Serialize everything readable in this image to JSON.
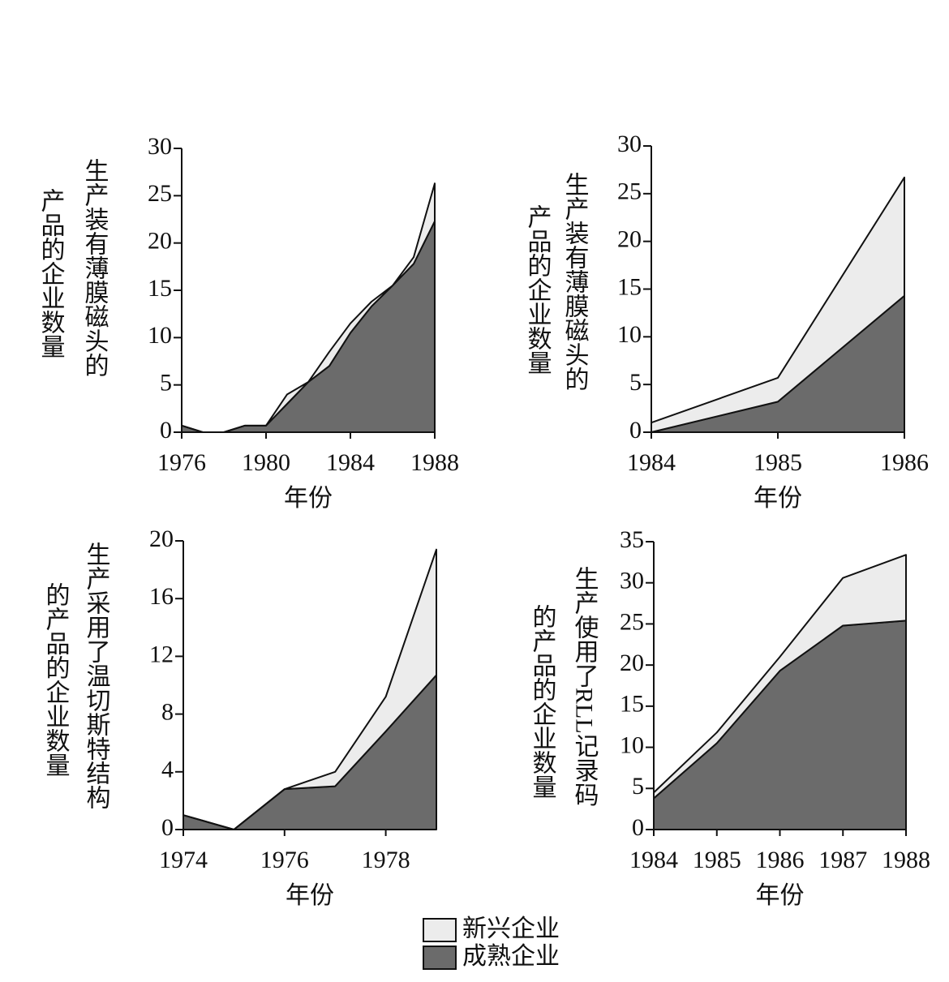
{
  "chart_data": [
    {
      "type": "stacked_area",
      "xlabel": "年份",
      "ylabel": [
        "生产装有薄膜磁头的",
        "产品的企业数量"
      ],
      "x": [
        1976,
        1977,
        1978,
        1979,
        1980,
        1981,
        1982,
        1983,
        1984,
        1985,
        1986,
        1987,
        1988
      ],
      "xlim": [
        1976,
        1988
      ],
      "xticks": [
        1976,
        1980,
        1984,
        1988
      ],
      "ylim": [
        0,
        30
      ],
      "yticks": [
        0,
        5,
        10,
        15,
        20,
        25,
        30
      ],
      "series": [
        {
          "name": "成熟企业",
          "color": "#6b6b6b",
          "values": [
            0.7,
            0,
            0,
            0.7,
            0.7,
            3,
            5.3,
            7,
            10.5,
            13.3,
            15.5,
            17.8,
            22.3
          ]
        },
        {
          "name": "新兴企业",
          "color": "#ececec",
          "values": [
            0,
            0,
            0,
            0,
            0,
            1,
            0,
            1.5,
            1,
            0.5,
            0,
            0.7,
            4
          ]
        }
      ]
    },
    {
      "type": "stacked_area",
      "xlabel": "年份",
      "ylabel": [
        "生产装有薄膜磁头的",
        "产品的企业数量"
      ],
      "x": [
        1984,
        1985,
        1986
      ],
      "xlim": [
        1984,
        1986
      ],
      "xticks": [
        1984,
        1985,
        1986
      ],
      "ylim": [
        0,
        30
      ],
      "yticks": [
        0,
        5,
        10,
        15,
        20,
        25,
        30
      ],
      "series": [
        {
          "name": "成熟企业",
          "color": "#6b6b6b",
          "values": [
            0,
            3.2,
            14.3
          ]
        },
        {
          "name": "新兴企业",
          "color": "#ececec",
          "values": [
            1,
            2.5,
            12.4
          ]
        }
      ]
    },
    {
      "type": "stacked_area",
      "xlabel": "年份",
      "ylabel": [
        "生产采用了温切斯特结构",
        "的产品的企业数量"
      ],
      "x": [
        1974,
        1975,
        1976,
        1977,
        1978,
        1979
      ],
      "xlim": [
        1974,
        1979
      ],
      "xticks": [
        1974,
        1976,
        1978
      ],
      "ylim": [
        0,
        20
      ],
      "yticks": [
        0,
        4,
        8,
        12,
        16,
        20
      ],
      "series": [
        {
          "name": "成熟企业",
          "color": "#6b6b6b",
          "values": [
            1,
            0,
            2.8,
            3,
            6.8,
            10.7
          ]
        },
        {
          "name": "新兴企业",
          "color": "#ececec",
          "values": [
            0,
            0,
            0,
            1,
            2.4,
            8.7
          ]
        }
      ]
    },
    {
      "type": "stacked_area",
      "xlabel": "年份",
      "ylabel": [
        "生产使用了RLL记录码",
        "的产品的企业数量"
      ],
      "x": [
        1984,
        1985,
        1986,
        1987,
        1988
      ],
      "xlim": [
        1984,
        1988
      ],
      "xticks": [
        1984,
        1985,
        1986,
        1987,
        1988
      ],
      "ylim": [
        0,
        35
      ],
      "yticks": [
        0,
        5,
        10,
        15,
        20,
        25,
        30,
        35
      ],
      "series": [
        {
          "name": "成熟企业",
          "color": "#6b6b6b",
          "values": [
            3.8,
            10.5,
            19.3,
            24.8,
            25.4
          ]
        },
        {
          "name": "新兴企业",
          "color": "#ececec",
          "values": [
            0.7,
            1.3,
            1.7,
            5.8,
            8
          ]
        }
      ]
    }
  ]
}
